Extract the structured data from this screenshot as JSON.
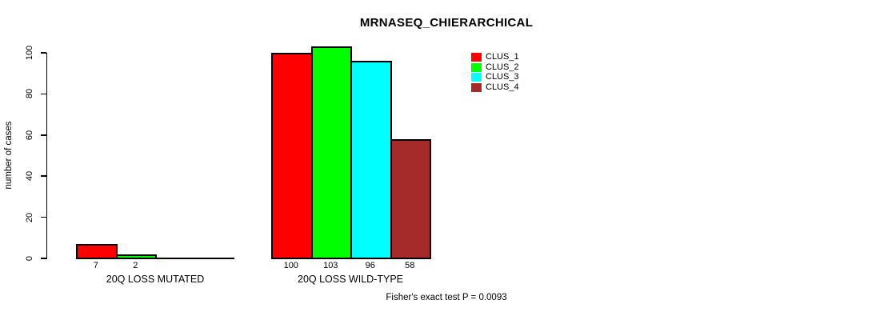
{
  "chart_data": {
    "type": "bar",
    "title": "MRNASEQ_CHIERARCHICAL",
    "ylabel": "number of cases",
    "xlabel": "",
    "ylim": [
      0,
      100
    ],
    "yticks": [
      0,
      20,
      40,
      60,
      80,
      100
    ],
    "grid": false,
    "legend_position": "top-right",
    "categories": [
      "20Q LOSS MUTATED",
      "20Q LOSS WILD-TYPE"
    ],
    "series": [
      {
        "name": "CLUS_1",
        "color": "#FF0000",
        "values": [
          7,
          100
        ]
      },
      {
        "name": "CLUS_2",
        "color": "#00FF00",
        "values": [
          2,
          103
        ]
      },
      {
        "name": "CLUS_3",
        "color": "#00FFFF",
        "values": [
          0,
          96
        ]
      },
      {
        "name": "CLUS_4",
        "color": "#A52A2A",
        "values": [
          0,
          58
        ]
      }
    ],
    "bar_value_labels_shown": [
      "7",
      "2",
      "100",
      "103",
      "96",
      "58"
    ],
    "zero_value_bars_hidden": true,
    "annotation": "Fisher's exact test P = 0.0093",
    "colors": {
      "axis": "#000000",
      "text": "#000000",
      "background": "#FFFFFF"
    }
  }
}
